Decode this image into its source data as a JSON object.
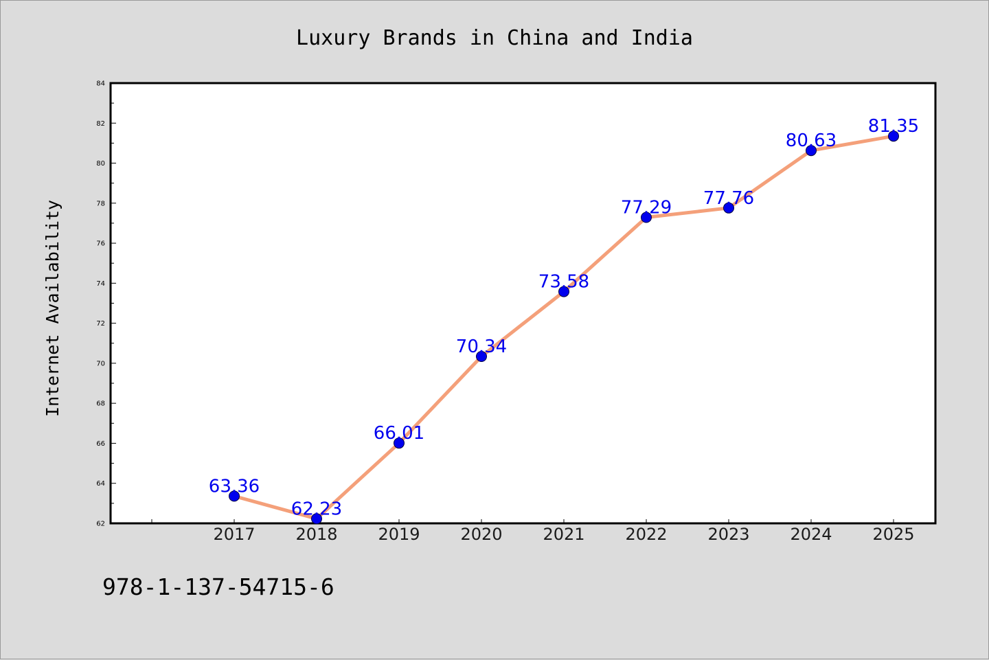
{
  "colors": {
    "background": "#dcdcdc",
    "plot_background": "#ffffff",
    "line": "#f4a07a",
    "marker": "#0000ee",
    "data_label": "#0000ee"
  },
  "footer": {
    "isbn": "978-1-137-54715-6"
  },
  "chart_data": {
    "type": "line",
    "title": "Luxury Brands in China and India",
    "xlabel": "",
    "ylabel": "Internet Availability",
    "categories": [
      "2017",
      "2018",
      "2019",
      "2020",
      "2021",
      "2022",
      "2023",
      "2024",
      "2025"
    ],
    "series": [
      {
        "values": [
          63.36,
          62.23,
          66.01,
          70.34,
          73.58,
          77.29,
          77.76,
          80.63,
          81.35
        ],
        "labels": [
          "63.36",
          "62.23",
          "66.01",
          "70.34",
          "73.58",
          "77.29",
          "77.76",
          "80.63",
          "81.35"
        ]
      }
    ],
    "ylim": [
      62,
      84
    ],
    "yticks": [
      "62",
      "64",
      "66",
      "68",
      "70",
      "72",
      "74",
      "76",
      "78",
      "80",
      "82",
      "84"
    ],
    "grid": false,
    "legend": "none"
  }
}
